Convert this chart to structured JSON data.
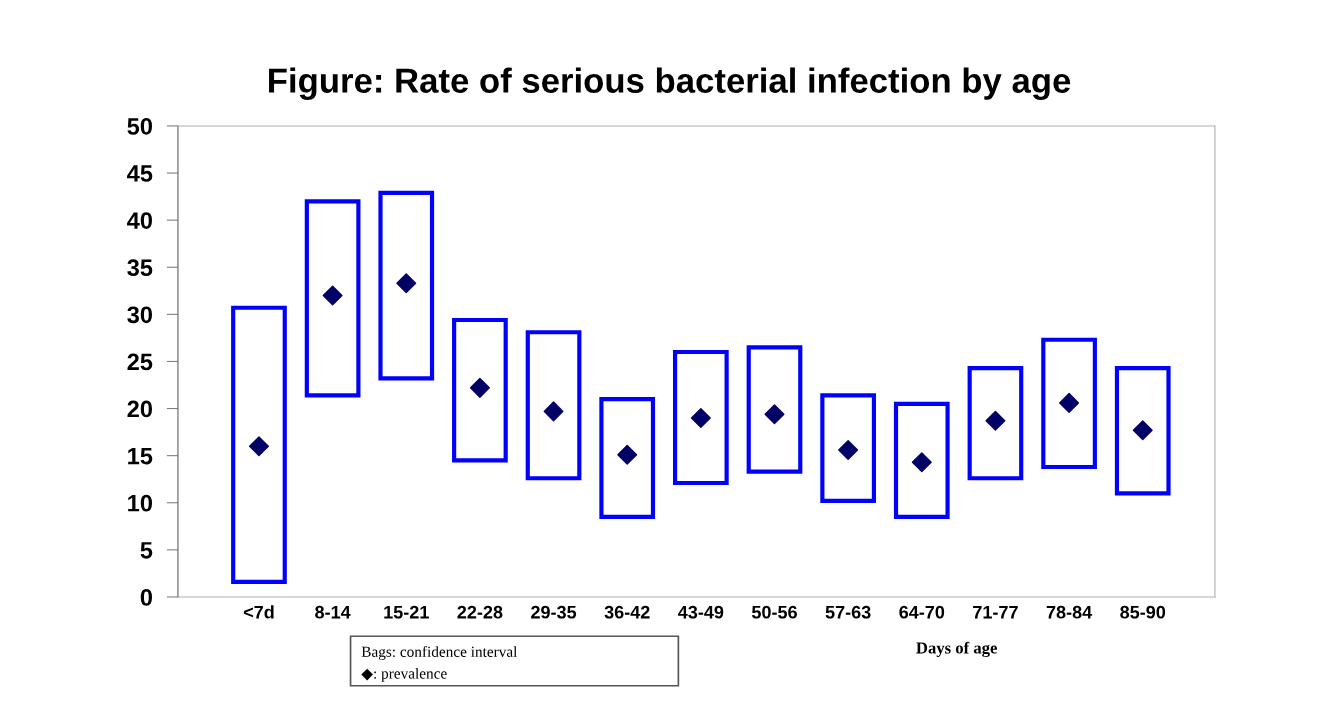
{
  "chart_data": {
    "type": "bar",
    "title": "Figure: Rate of serious bacterial infection by age",
    "xlabel": "Days of age",
    "categories": [
      "<7d",
      "8-14",
      "15-21",
      "22-28",
      "29-35",
      "36-42",
      "43-49",
      "50-56",
      "57-63",
      "64-70",
      "71-77",
      "78-84",
      "85-90"
    ],
    "series": [
      {
        "color": "#0000ff",
        "base": [
          1.6,
          21.4,
          23.2,
          14.5,
          12.6,
          8.5,
          12.1,
          13.3,
          10.2,
          8.5,
          12.6,
          13.8,
          11.0
        ],
        "values": [
          29.1,
          20.6,
          19.7,
          14.9,
          15.5,
          12.5,
          13.9,
          13.2,
          11.2,
          12.0,
          11.7,
          13.5,
          13.3
        ]
      },
      {
        "type": "scatter",
        "color": "#000066",
        "marker": "diamond",
        "x": [
          "<7d",
          "8-14",
          "15-21",
          "22-28",
          "29-35",
          "36-42",
          "43-49",
          "50-56",
          "57-63",
          "64-70",
          "71-77",
          "78-84",
          "85-90"
        ],
        "values": [
          16.0,
          32.0,
          33.3,
          22.2,
          19.7,
          15.1,
          19.0,
          19.4,
          15.6,
          14.3,
          18.7,
          20.6,
          17.7
        ]
      }
    ],
    "ylim": [
      0,
      50
    ],
    "yticks": [
      0,
      5,
      10,
      15,
      20,
      25,
      30,
      35,
      40,
      45,
      50
    ],
    "grid": false,
    "legend": false,
    "annotations": [
      "Bags: confidence interval",
      "◆: prevalence"
    ]
  }
}
